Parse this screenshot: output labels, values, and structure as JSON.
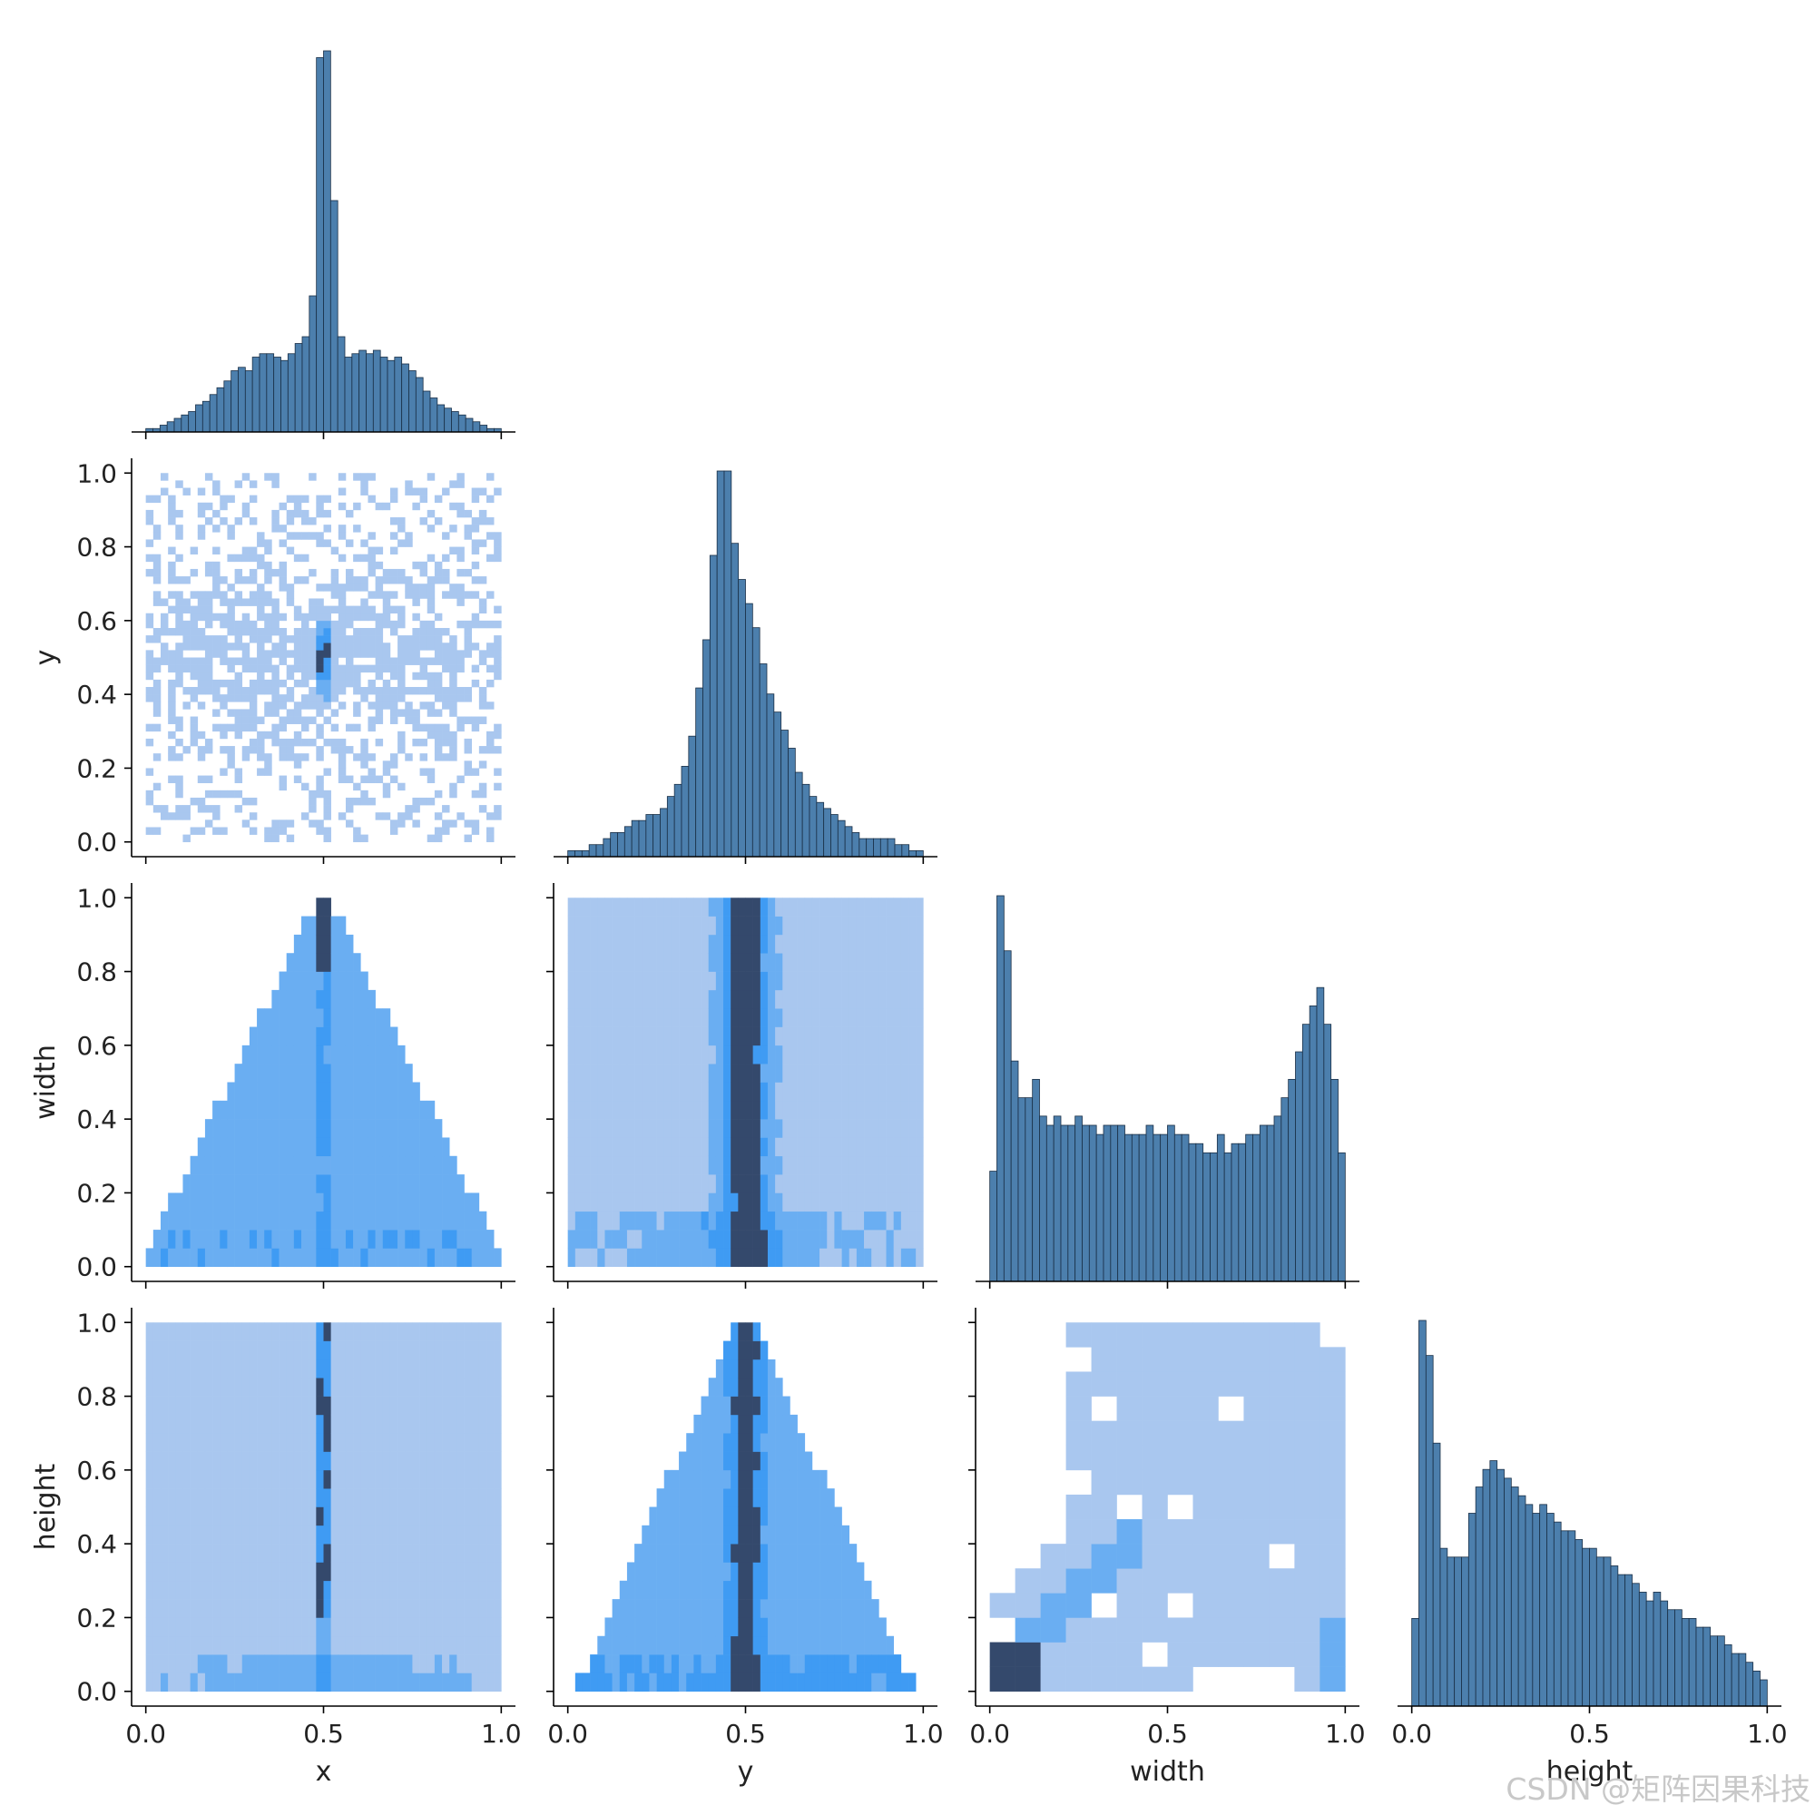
{
  "chart_data": {
    "type": "pairplot",
    "kind": "hist",
    "corner": true,
    "variables": [
      "x",
      "y",
      "width",
      "height"
    ],
    "tick_labels": [
      "0.0",
      "0.5",
      "1.0"
    ],
    "y_tick_labels": [
      "0.0",
      "0.2",
      "0.4",
      "0.6",
      "0.8",
      "1.0"
    ],
    "xlim": [
      -0.04,
      1.04
    ],
    "ylim": [
      -0.04,
      1.04
    ],
    "colors": {
      "bar": "#4c7fad",
      "bar_edge": "#1a2f46",
      "heat_light": "#a9c7ef",
      "heat_mid": "#3f9bf3",
      "heat_dark": "#34496c"
    },
    "diagonal": [
      {
        "var": "x",
        "bins": 50,
        "counts": [
          1,
          1,
          2,
          3,
          4,
          5,
          6,
          8,
          9,
          11,
          13,
          15,
          18,
          19,
          18,
          22,
          23,
          23,
          22,
          21,
          23,
          26,
          28,
          40,
          110,
          112,
          68,
          28,
          22,
          23,
          24,
          23,
          24,
          22,
          21,
          22,
          20,
          18,
          16,
          12,
          10,
          8,
          7,
          6,
          5,
          4,
          3,
          2,
          1,
          1
        ]
      },
      {
        "var": "y",
        "bins": 50,
        "counts": [
          1,
          1,
          1,
          2,
          2,
          3,
          4,
          4,
          5,
          6,
          6,
          7,
          7,
          8,
          10,
          12,
          15,
          20,
          28,
          36,
          50,
          64,
          64,
          52,
          46,
          42,
          38,
          32,
          27,
          24,
          21,
          18,
          14,
          12,
          10,
          9,
          8,
          7,
          6,
          5,
          4,
          3,
          3,
          3,
          3,
          3,
          2,
          2,
          1,
          1
        ]
      },
      {
        "var": "width",
        "bins": 50,
        "counts": [
          12,
          42,
          36,
          24,
          20,
          20,
          22,
          18,
          17,
          18,
          17,
          17,
          18,
          17,
          17,
          16,
          17,
          17,
          17,
          16,
          16,
          16,
          17,
          16,
          16,
          17,
          16,
          16,
          15,
          15,
          14,
          14,
          16,
          14,
          15,
          15,
          16,
          16,
          17,
          17,
          18,
          20,
          22,
          25,
          28,
          30,
          32,
          28,
          22,
          14
        ]
      },
      {
        "var": "height",
        "bins": 50,
        "counts": [
          10,
          44,
          40,
          30,
          18,
          17,
          17,
          17,
          22,
          25,
          27,
          28,
          27,
          26,
          25,
          24,
          23,
          22,
          23,
          22,
          21,
          20,
          20,
          19,
          18,
          18,
          17,
          17,
          16,
          15,
          15,
          14,
          13,
          12,
          13,
          12,
          11,
          11,
          10,
          10,
          9,
          9,
          8,
          8,
          7,
          6,
          6,
          5,
          4,
          3
        ]
      }
    ],
    "panels": [
      {
        "row": "y",
        "col": "x",
        "xlabel": "",
        "ylabel": "y"
      },
      {
        "row": "width",
        "col": "x",
        "xlabel": "",
        "ylabel": "width"
      },
      {
        "row": "width",
        "col": "y",
        "xlabel": "",
        "ylabel": ""
      },
      {
        "row": "height",
        "col": "x",
        "xlabel": "x",
        "ylabel": "height"
      },
      {
        "row": "height",
        "col": "y",
        "xlabel": "y",
        "ylabel": ""
      },
      {
        "row": "height",
        "col": "width",
        "xlabel": "width",
        "ylabel": ""
      }
    ],
    "grid": false,
    "legend": "none"
  },
  "watermark": "CSDN @矩阵因果科技"
}
